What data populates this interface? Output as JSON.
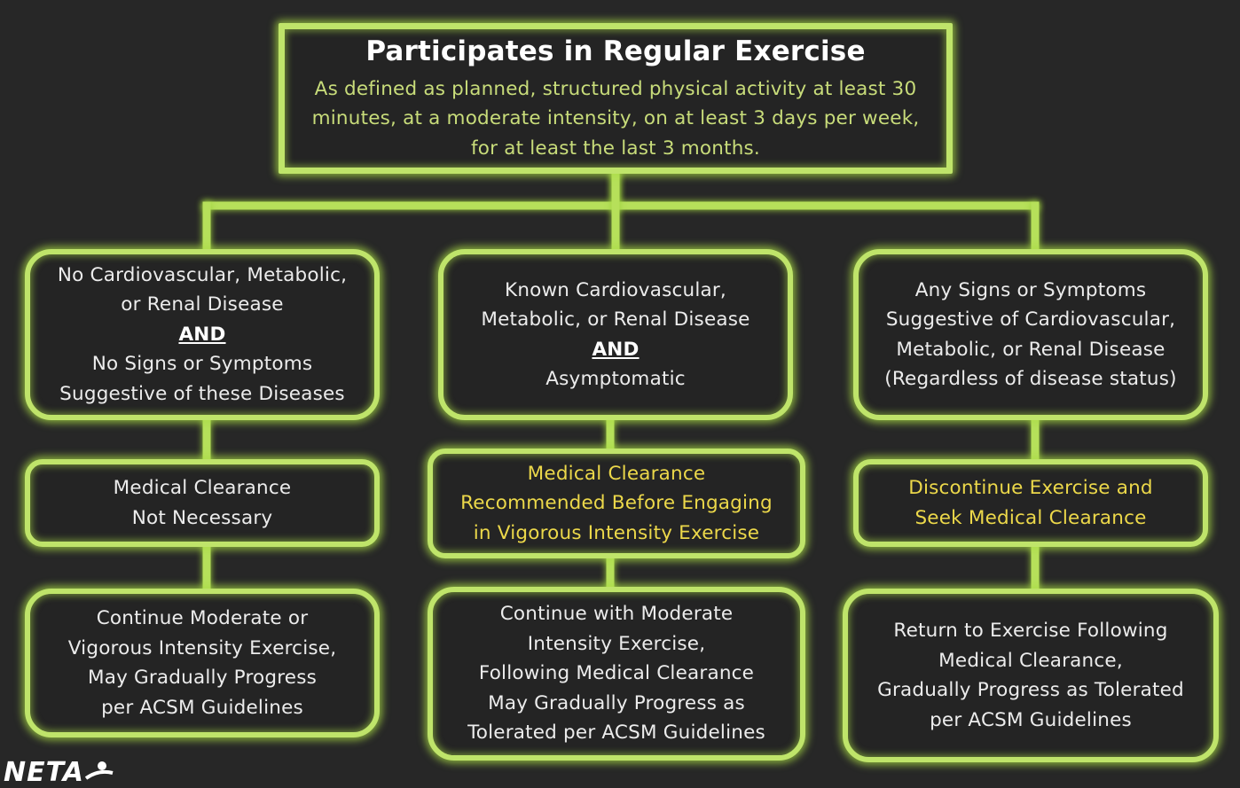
{
  "top": {
    "title": "Participates in Regular Exercise",
    "description_lines": [
      "As defined as  planned, structured physical activity at least 30",
      "minutes, at a moderate intensity, on at least 3 days per week,",
      "for at least the last 3 months."
    ]
  },
  "columns": [
    {
      "condition": {
        "lines_before": [
          "No Cardiovascular, Metabolic,",
          "or Renal Disease"
        ],
        "and_label": "AND",
        "lines_after": [
          "No Signs or Symptoms",
          "Suggestive of these Diseases"
        ]
      },
      "recommendation": {
        "lines": [
          "Medical Clearance",
          "Not Necessary"
        ]
      },
      "action": {
        "lines": [
          "Continue Moderate or",
          "Vigorous Intensity Exercise,",
          "May Gradually Progress",
          "per ACSM Guidelines"
        ]
      }
    },
    {
      "condition": {
        "lines_before": [
          "Known Cardiovascular,",
          "Metabolic, or Renal Disease"
        ],
        "and_label": "AND",
        "lines_after": [
          "Asymptomatic"
        ]
      },
      "recommendation": {
        "lines": [
          "Medical Clearance",
          "Recommended Before Engaging",
          "in Vigorous Intensity Exercise"
        ]
      },
      "action": {
        "lines": [
          "Continue with Moderate",
          "Intensity Exercise,",
          "Following Medical Clearance",
          "May Gradually Progress as",
          "Tolerated per ACSM Guidelines"
        ]
      }
    },
    {
      "condition": {
        "lines_before": [
          "Any Signs or Symptoms",
          "Suggestive of Cardiovascular,",
          "Metabolic, or Renal Disease",
          "(Regardless of disease status)"
        ],
        "and_label": "",
        "lines_after": []
      },
      "recommendation": {
        "lines": [
          "Discontinue Exercise and",
          "Seek Medical Clearance"
        ]
      },
      "action": {
        "lines": [
          "Return to Exercise Following",
          "Medical Clearance,",
          "Gradually Progress as Tolerated",
          "per ACSM Guidelines"
        ]
      }
    }
  ],
  "logo": {
    "text": "NETA"
  },
  "colors": {
    "background": "#272727",
    "glow": "#bfe46a",
    "title_text": "#ffffff",
    "description_text": "#c8dc7a",
    "body_text": "#ececec",
    "highlight_text": "#ecd84a"
  }
}
